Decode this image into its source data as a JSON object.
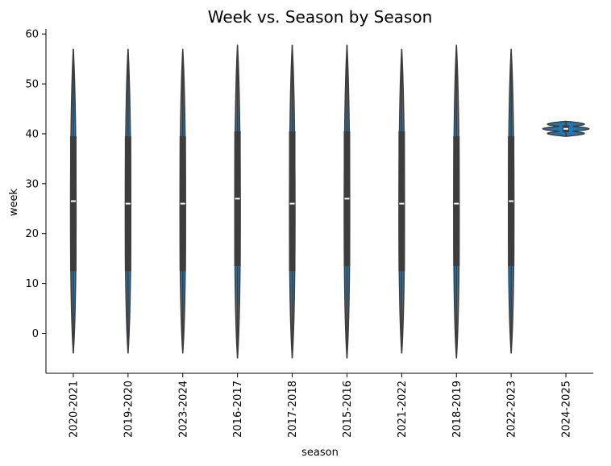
{
  "chart_data": {
    "type": "violin",
    "title": "Week vs. Season by Season",
    "xlabel": "season",
    "ylabel": "week",
    "ylim": [
      -8,
      61
    ],
    "yticks": [
      0,
      10,
      20,
      30,
      40,
      50,
      60
    ],
    "grid": false,
    "legend": "none",
    "colors": {
      "violin": "#1f77b4",
      "box": "#3d3d3d",
      "median": "#ffffff"
    },
    "categories": [
      "2020-2021",
      "2019-2020",
      "2023-2024",
      "2016-2017",
      "2017-2018",
      "2015-2016",
      "2021-2022",
      "2018-2019",
      "2022-2023",
      "2024-2025"
    ],
    "violins": [
      {
        "season": "2020-2021",
        "min": -4,
        "q1": 12.5,
        "median": 26.5,
        "q3": 39.5,
        "max": 57
      },
      {
        "season": "2019-2020",
        "min": -4,
        "q1": 12.5,
        "median": 26,
        "q3": 39.5,
        "max": 57
      },
      {
        "season": "2023-2024",
        "min": -4,
        "q1": 12.5,
        "median": 26,
        "q3": 39.5,
        "max": 57
      },
      {
        "season": "2016-2017",
        "min": -5,
        "q1": 13.5,
        "median": 27,
        "q3": 40.5,
        "max": 57.8
      },
      {
        "season": "2017-2018",
        "min": -5,
        "q1": 12.5,
        "median": 26,
        "q3": 40.5,
        "max": 57.8
      },
      {
        "season": "2015-2016",
        "min": -5,
        "q1": 13.5,
        "median": 27,
        "q3": 40.5,
        "max": 57.8
      },
      {
        "season": "2021-2022",
        "min": -4,
        "q1": 12.5,
        "median": 26,
        "q3": 40.5,
        "max": 57
      },
      {
        "season": "2018-2019",
        "min": -5,
        "q1": 13.5,
        "median": 26,
        "q3": 39.5,
        "max": 57.8
      },
      {
        "season": "2022-2023",
        "min": -4,
        "q1": 13.5,
        "median": 26.5,
        "q3": 39.5,
        "max": 57
      },
      {
        "season": "2024-2025",
        "min": 39.5,
        "q1": 40.3,
        "median": 41,
        "q3": 41.7,
        "max": 42.5
      }
    ]
  }
}
